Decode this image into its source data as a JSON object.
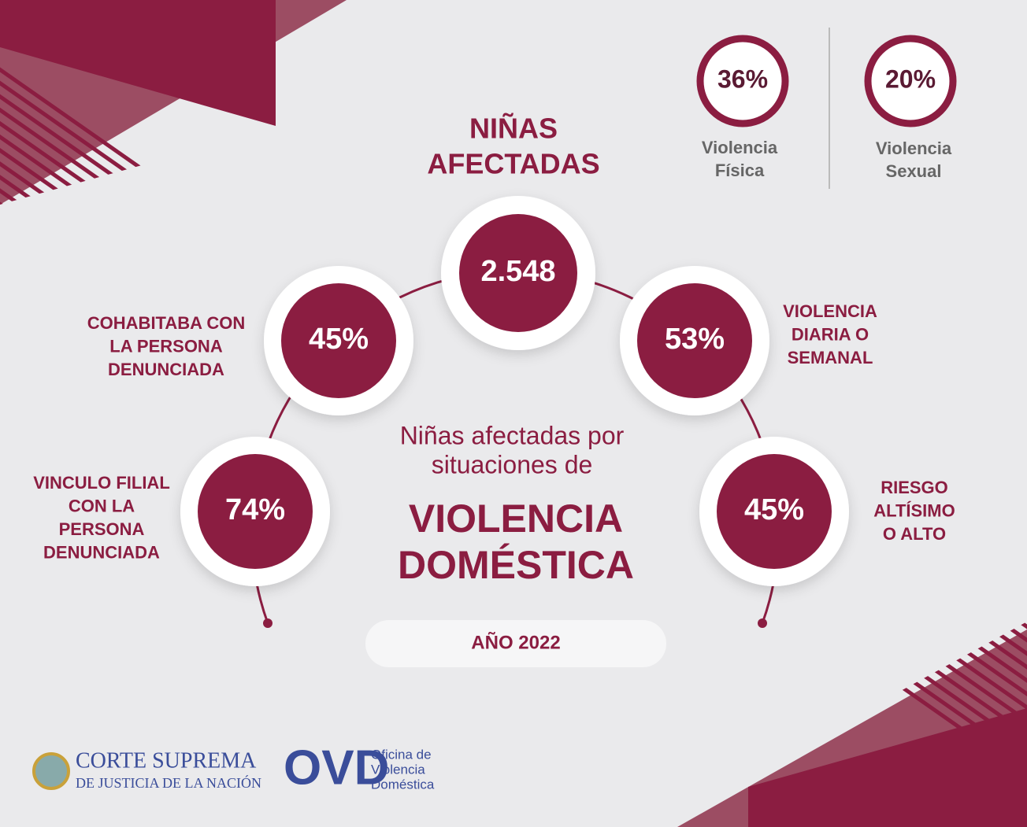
{
  "header": {
    "title_lines": [
      "NIÑAS",
      "AFECTADAS"
    ],
    "total": "2.548"
  },
  "top_stats": [
    {
      "value": "36%",
      "label_lines": [
        "Violencia",
        "Física"
      ]
    },
    {
      "value": "20%",
      "label_lines": [
        "Violencia",
        "Sexual"
      ]
    }
  ],
  "stats": [
    {
      "value": "45%",
      "label_lines": [
        "COHABITABA CON",
        "LA PERSONA",
        "DENUNCIADA"
      ]
    },
    {
      "value": "53%",
      "label_lines": [
        "VIOLENCIA",
        "DIARIA O",
        "SEMANAL"
      ]
    },
    {
      "value": "74%",
      "label_lines": [
        "VINCULO FILIAL",
        "CON LA",
        "PERSONA",
        "DENUNCIADA"
      ]
    },
    {
      "value": "45%",
      "label_lines": [
        "RIESGO",
        "ALTÍSIMO",
        "O ALTO"
      ]
    }
  ],
  "center": {
    "intro_lines": [
      "Niñas afectadas por",
      "situaciones de"
    ],
    "title_lines": [
      "VIOLENCIA",
      "DOMÉSTICA"
    ],
    "year": "AÑO 2022"
  },
  "footer": {
    "corte_lines": [
      "CORTE SUPREMA",
      "DE JUSTICIA DE LA NACIÓN"
    ],
    "ovd": "OVD",
    "ovd_lines": [
      "Oficina de",
      "Violencia",
      "Doméstica"
    ]
  }
}
